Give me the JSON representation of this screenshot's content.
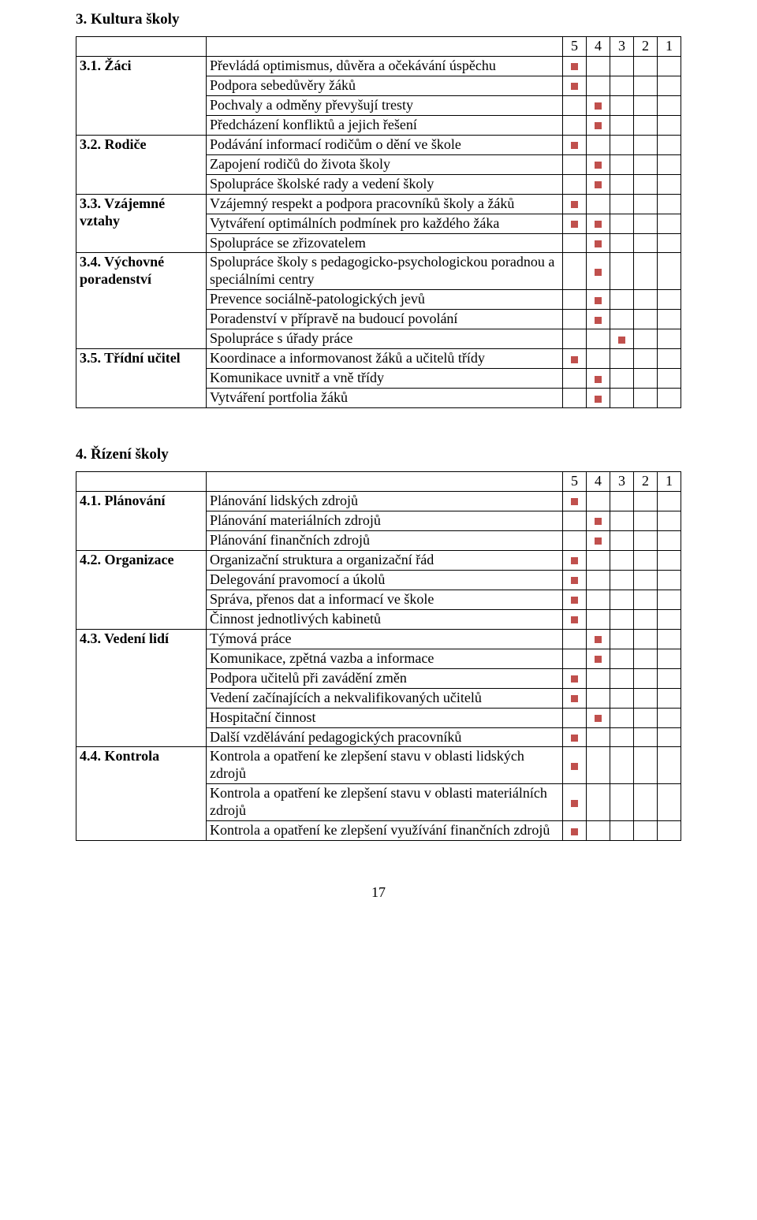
{
  "mark_color": "#c0504d",
  "section3": {
    "title": "3. Kultura školy",
    "score_headers": [
      "5",
      "4",
      "3",
      "2",
      "1"
    ],
    "areas": [
      {
        "label": "3.1. Žáci",
        "rows": [
          {
            "crit": "Převládá optimismus, důvěra a očekávání úspěchu",
            "score_col": 1
          },
          {
            "crit": "Podpora sebedůvěry žáků",
            "score_col": 1
          },
          {
            "crit": "Pochvaly a odměny převyšují tresty",
            "score_col": 2
          },
          {
            "crit": "Předcházení konfliktů a jejich řešení",
            "score_col": 2
          }
        ]
      },
      {
        "label": "3.2. Rodiče",
        "rows": [
          {
            "crit": "Podávání informací rodičům o dění ve škole",
            "score_col": 1
          },
          {
            "crit": "Zapojení rodičů do života školy",
            "score_col": 2
          },
          {
            "crit": "Spolupráce školské rady a vedení školy",
            "score_col": 2
          }
        ]
      },
      {
        "label": "3.3. Vzájemné vztahy",
        "rows": [
          {
            "crit": "Vzájemný respekt a podpora pracovníků školy a žáků",
            "score_col": 1
          },
          {
            "crit": "Vytváření optimálních podmínek pro každého žáka",
            "score_cols": [
              1,
              2
            ]
          },
          {
            "crit": "Spolupráce se zřizovatelem",
            "score_col": 2
          }
        ]
      },
      {
        "label": "3.4. Výchovné poradenství",
        "rows": [
          {
            "crit": "Spolupráce školy s pedagogicko-psychologickou poradnou a speciálními centry",
            "score_col": 2
          },
          {
            "crit": "Prevence sociálně-patologických jevů",
            "score_col": 2
          },
          {
            "crit": "Poradenství v přípravě na budoucí povolání",
            "score_col": 2
          },
          {
            "crit": "Spolupráce s úřady práce",
            "score_col": 3
          }
        ]
      },
      {
        "label": "3.5. Třídní učitel",
        "rows": [
          {
            "crit": "Koordinace a informovanost žáků a učitelů třídy",
            "score_col": 1
          },
          {
            "crit": "Komunikace uvnitř a vně třídy",
            "score_col": 2
          },
          {
            "crit": "Vytváření portfolia žáků",
            "score_col": 2
          }
        ]
      }
    ]
  },
  "section4": {
    "title": "4. Řízení školy",
    "score_headers": [
      "5",
      "4",
      "3",
      "2",
      "1"
    ],
    "areas": [
      {
        "label": "4.1. Plánování",
        "rows": [
          {
            "crit": "Plánování lidských zdrojů",
            "score_col": 1
          },
          {
            "crit": "Plánování materiálních zdrojů",
            "score_col": 2
          },
          {
            "crit": "Plánování finančních zdrojů",
            "score_col": 2
          }
        ]
      },
      {
        "label": "4.2. Organizace",
        "rows": [
          {
            "crit": "Organizační struktura a organizační řád",
            "score_col": 1
          },
          {
            "crit": "Delegování pravomocí a úkolů",
            "score_col": 1
          },
          {
            "crit": "Správa, přenos dat a informací ve škole",
            "score_col": 1
          },
          {
            "crit": "Činnost jednotlivých kabinetů",
            "score_col": 1
          }
        ]
      },
      {
        "label": "4.3. Vedení lidí",
        "rows": [
          {
            "crit": "Týmová práce",
            "score_col": 2
          },
          {
            "crit": "Komunikace, zpětná vazba a informace",
            "score_col": 2
          },
          {
            "crit": "Podpora učitelů při zavádění změn",
            "score_col": 1
          },
          {
            "crit": "Vedení začínajících a nekvalifikovaných učitelů",
            "score_col": 1
          },
          {
            "crit": "Hospitační činnost",
            "score_col": 2
          },
          {
            "crit": "Další vzdělávání pedagogických pracovníků",
            "score_col": 1
          }
        ]
      },
      {
        "label": "4.4. Kontrola",
        "rows": [
          {
            "crit": "Kontrola a opatření ke zlepšení stavu v oblasti lidských zdrojů",
            "score_col": 1
          },
          {
            "crit": "Kontrola a opatření ke zlepšení stavu v oblasti materiálních zdrojů",
            "score_col": 1
          },
          {
            "crit": "Kontrola a opatření ke zlepšení využívání finančních zdrojů",
            "score_col": 1
          }
        ]
      }
    ]
  },
  "page_number": "17"
}
